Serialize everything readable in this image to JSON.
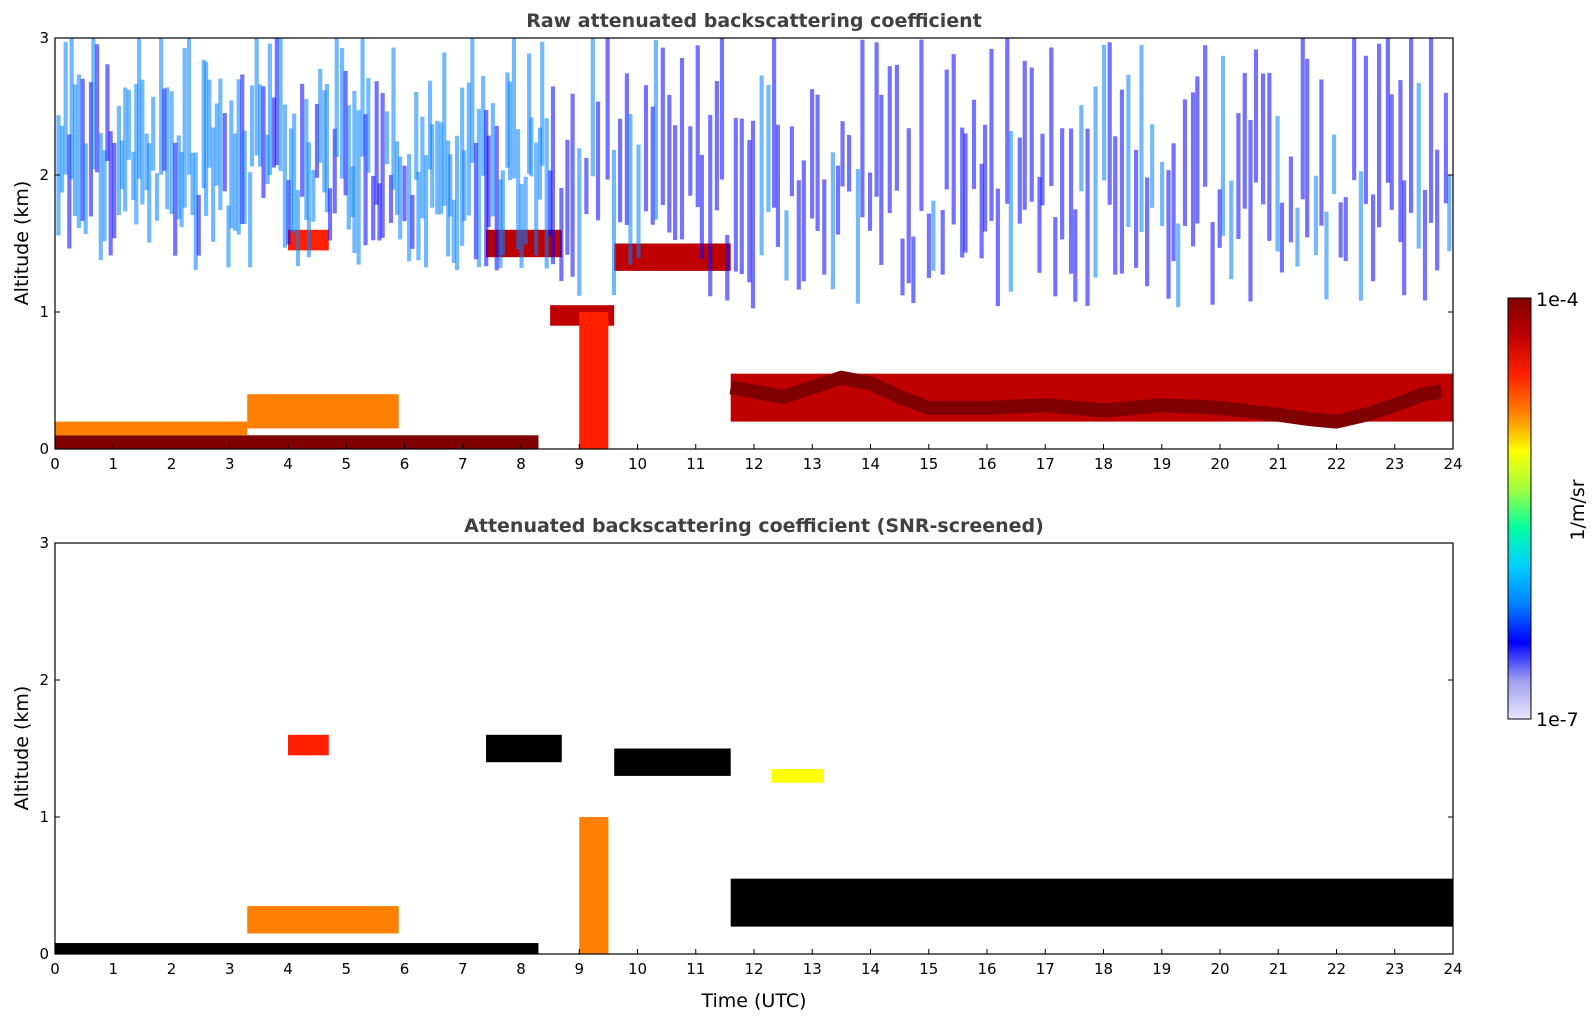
{
  "chart_data": [
    {
      "type": "heatmap",
      "title": "Raw attenuated backscattering coefficient",
      "xlabel": "",
      "ylabel": "Altitude (km)",
      "xlim": [
        0,
        24
      ],
      "ylim": [
        0,
        3
      ],
      "xticks": [
        "0",
        "1",
        "2",
        "3",
        "4",
        "5",
        "6",
        "7",
        "8",
        "9",
        "10",
        "11",
        "12",
        "13",
        "14",
        "15",
        "16",
        "17",
        "18",
        "19",
        "20",
        "21",
        "22",
        "23",
        "24"
      ],
      "yticks": [
        "0",
        "1",
        "2",
        "3"
      ],
      "screening": "raw",
      "features": [
        {
          "feature": "surface_layer",
          "x": [
            0,
            8.3
          ],
          "y": [
            0,
            0.1
          ],
          "level": 1.0
        },
        {
          "feature": "aerosol_layer_top",
          "x": [
            0,
            3.3
          ],
          "y": [
            0.1,
            0.2
          ],
          "level": 0.75
        },
        {
          "feature": "aerosol_layer",
          "x": [
            3.3,
            5.9
          ],
          "y": [
            0.15,
            0.4
          ],
          "level": 0.7
        },
        {
          "feature": "cloud_layer",
          "x": [
            4.0,
            4.7
          ],
          "y": [
            1.45,
            1.6
          ],
          "level": 0.85
        },
        {
          "feature": "cloud_layer",
          "x": [
            7.4,
            8.7
          ],
          "y": [
            1.4,
            1.6
          ],
          "level": 0.95
        },
        {
          "feature": "cloud_layer",
          "x": [
            9.6,
            11.6
          ],
          "y": [
            1.3,
            1.5
          ],
          "level": 0.95
        },
        {
          "feature": "cloud_layer",
          "x": [
            8.5,
            9.6
          ],
          "y": [
            0.9,
            1.05
          ],
          "level": 0.95
        },
        {
          "feature": "precipitation",
          "x": [
            9.0,
            9.5
          ],
          "y": [
            0,
            1.0
          ],
          "level": 0.8
        },
        {
          "feature": "boundary_layer_top",
          "x": [
            11.6,
            24
          ],
          "y": [
            0.2,
            0.55
          ],
          "level": 0.95
        },
        {
          "feature": "noise_region",
          "x": [
            0,
            8.5
          ],
          "y": [
            1.3,
            3.0
          ],
          "level": 0.25
        },
        {
          "feature": "noise_region",
          "x": [
            8.5,
            24
          ],
          "y": [
            1.0,
            3.0
          ],
          "level": 0.2
        }
      ],
      "boundary_layer_top_km": {
        "x": [
          11.6,
          12,
          12.5,
          13,
          13.5,
          14,
          14.5,
          15,
          16,
          17,
          18,
          19,
          20,
          21,
          21.5,
          22,
          22.5,
          23,
          23.5,
          23.8
        ],
        "y": [
          0.45,
          0.42,
          0.38,
          0.45,
          0.52,
          0.48,
          0.38,
          0.3,
          0.3,
          0.32,
          0.28,
          0.32,
          0.3,
          0.25,
          0.22,
          0.2,
          0.25,
          0.32,
          0.4,
          0.42
        ]
      }
    },
    {
      "type": "heatmap",
      "title": "Attenuated backscattering coefficient (SNR-screened)",
      "xlabel": "Time (UTC)",
      "ylabel": "Altitude (km)",
      "xlim": [
        0,
        24
      ],
      "ylim": [
        0,
        3
      ],
      "xticks": [
        "0",
        "1",
        "2",
        "3",
        "4",
        "5",
        "6",
        "7",
        "8",
        "9",
        "10",
        "11",
        "12",
        "13",
        "14",
        "15",
        "16",
        "17",
        "18",
        "19",
        "20",
        "21",
        "22",
        "23",
        "24"
      ],
      "yticks": [
        "0",
        "1",
        "2",
        "3"
      ],
      "screening": "snr",
      "features": [
        {
          "feature": "surface_layer",
          "x": [
            0,
            8.3
          ],
          "y": [
            0,
            0.08
          ],
          "level": 1.0
        },
        {
          "feature": "aerosol_layer",
          "x": [
            3.3,
            5.9
          ],
          "y": [
            0.15,
            0.35
          ],
          "level": 0.7
        },
        {
          "feature": "cloud_layer",
          "x": [
            4.0,
            4.7
          ],
          "y": [
            1.45,
            1.6
          ],
          "level": 0.85
        },
        {
          "feature": "cloud_layer",
          "x": [
            7.4,
            8.7
          ],
          "y": [
            1.4,
            1.6
          ],
          "level": 1.0
        },
        {
          "feature": "cloud_layer",
          "x": [
            9.6,
            11.6
          ],
          "y": [
            1.3,
            1.5
          ],
          "level": 1.0
        },
        {
          "feature": "cloud_layer",
          "x": [
            12.3,
            13.2
          ],
          "y": [
            1.25,
            1.35
          ],
          "level": 0.6
        },
        {
          "feature": "precipitation",
          "x": [
            9.0,
            9.5
          ],
          "y": [
            0,
            1.0
          ],
          "level": 0.75
        },
        {
          "feature": "boundary_layer_top",
          "x": [
            11.6,
            24
          ],
          "y": [
            0.2,
            0.55
          ],
          "level": 1.0
        }
      ]
    }
  ],
  "colorbar": {
    "label": "1/m/sr",
    "max_label": "1e-4",
    "min_label": "1e-7",
    "colormap": [
      "#e6e6fa",
      "#a0a0f0",
      "#0000ff",
      "#0080ff",
      "#00d0ff",
      "#00ffa0",
      "#a0ff40",
      "#ffff00",
      "#ff8000",
      "#ff2000",
      "#c00000",
      "#800000"
    ],
    "screened_saturation_color": "#000000"
  }
}
